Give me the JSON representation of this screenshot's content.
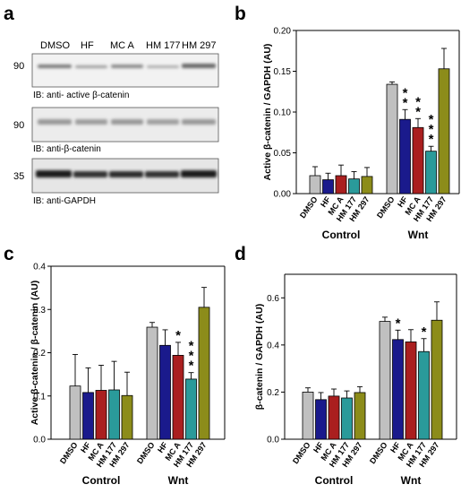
{
  "panel_letters": [
    "a",
    "b",
    "c",
    "d"
  ],
  "blot": {
    "lanes": [
      "DMSO",
      "HF",
      "MC A",
      "HM 177",
      "HM 297"
    ],
    "strips": [
      {
        "mw": "90",
        "label": "IB: anti- active β-catenin"
      },
      {
        "mw": "90",
        "label": "IB: anti-β-catenin"
      },
      {
        "mw": "35",
        "label": "IB: anti-GAPDH"
      }
    ]
  },
  "colors": {
    "DMSO": "#c0c0c0",
    "HF": "#1a1a8c",
    "MC A": "#aa1f1f",
    "HM 177": "#2a9a9a",
    "HM 297": "#8c8c1a"
  },
  "chart_data": [
    {
      "panel": "b",
      "type": "bar",
      "ylabel": "Active β-catenin / GAPDH (AU)",
      "ylim": [
        0,
        0.2
      ],
      "yticks": [
        "0.00",
        "0.05",
        "0.10",
        "0.15",
        "0.20"
      ],
      "groups": [
        "Control",
        "Wnt"
      ],
      "categories": [
        "DMSO",
        "HF",
        "MC A",
        "HM 177",
        "HM 297"
      ],
      "values": [
        [
          0.022,
          0.017,
          0.022,
          0.018,
          0.021
        ],
        [
          0.134,
          0.091,
          0.081,
          0.052,
          0.153
        ]
      ],
      "errors": [
        [
          0.011,
          0.008,
          0.013,
          0.009,
          0.011
        ],
        [
          0.003,
          0.012,
          0.011,
          0.006,
          0.025
        ]
      ],
      "significance": [
        [
          "",
          "",
          "",
          "",
          ""
        ],
        [
          "",
          "**",
          "**",
          "***",
          ""
        ]
      ]
    },
    {
      "panel": "c",
      "type": "bar",
      "ylabel": "Active β-catenin / β-catenin (AU)",
      "ylim": [
        0,
        0.4
      ],
      "yticks": [
        "0.0",
        "0.1",
        "0.2",
        "0.3",
        "0.4"
      ],
      "groups": [
        "Control",
        "Wnt"
      ],
      "categories": [
        "DMSO",
        "HF",
        "MC A",
        "HM 177",
        "HM 297"
      ],
      "values": [
        [
          0.123,
          0.108,
          0.113,
          0.114,
          0.101
        ],
        [
          0.259,
          0.217,
          0.194,
          0.139,
          0.305
        ]
      ],
      "errors": [
        [
          0.073,
          0.057,
          0.058,
          0.066,
          0.054
        ],
        [
          0.011,
          0.036,
          0.03,
          0.015,
          0.046
        ]
      ],
      "significance": [
        [
          "",
          "",
          "",
          "",
          ""
        ],
        [
          "",
          "",
          "*",
          "***",
          ""
        ]
      ]
    },
    {
      "panel": "d",
      "type": "bar",
      "ylabel": "β-catenin / GAPDH (AU)",
      "ylim": [
        0,
        0.7
      ],
      "yticks": [
        "0.0",
        "0.2",
        "0.4",
        "0.6"
      ],
      "groups": [
        "Control",
        "Wnt"
      ],
      "categories": [
        "DMSO",
        "HF",
        "MC A",
        "HM 177",
        "HM 297"
      ],
      "values": [
        [
          0.2,
          0.168,
          0.183,
          0.175,
          0.198
        ],
        [
          0.5,
          0.423,
          0.413,
          0.372,
          0.505
        ]
      ],
      "errors": [
        [
          0.018,
          0.03,
          0.03,
          0.03,
          0.025
        ],
        [
          0.018,
          0.04,
          0.052,
          0.055,
          0.078
        ]
      ],
      "significance": [
        [
          "",
          "",
          "",
          "",
          ""
        ],
        [
          "",
          "*",
          "",
          "*",
          ""
        ]
      ]
    }
  ]
}
